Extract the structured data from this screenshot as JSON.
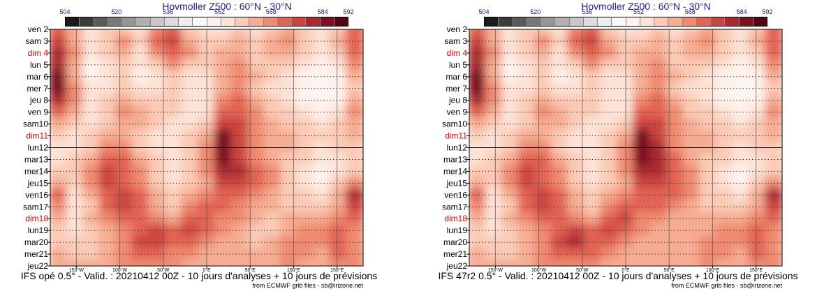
{
  "chart_data": [
    {
      "type": "heatmap",
      "title": "Hovmoller Z500 : 60°N - 30°N",
      "caption": "IFS opé 0.5° - Valid. : 20210412 00Z - 10 jours d'analyses + 10 jours de prévisions",
      "credit": "from ECMWF grib files - sb@irizone.net",
      "colorbar_ticks": [
        "504",
        "520",
        "536",
        "552",
        "568",
        "584",
        "592"
      ],
      "colorbar_range": [
        504,
        592
      ],
      "colorbar_colors": [
        "#1a1a1a",
        "#3c3c3c",
        "#5a5a5a",
        "#787878",
        "#969696",
        "#b0b0b0",
        "#c8c8c8",
        "#dcdcdc",
        "#eeeeee",
        "#f8f8f8",
        "#fff2ec",
        "#fde2d6",
        "#fbcab6",
        "#f6ac92",
        "#ef8a70",
        "#e26452",
        "#cc4440",
        "#a82a30",
        "#7a1020",
        "#5a0016"
      ],
      "y_labels": [
        "ven 2",
        "sam 3",
        "dim 4",
        "lun 5",
        "mar 6",
        "mer 7",
        "jeu 8",
        "ven 9",
        "sam10",
        "dim11",
        "lun12",
        "mar13",
        "mer14",
        "jeu15",
        "ven16",
        "sam17",
        "dim18",
        "lun19",
        "mar20",
        "mer21",
        "jeu22"
      ],
      "weekend_color": "#dd0000",
      "x_labels": [
        "150°W",
        "100°W",
        "50°W",
        "0°E",
        "50°E",
        "100°E",
        "150°E"
      ],
      "x_values": [
        -150,
        -100,
        -50,
        0,
        50,
        100,
        150
      ],
      "x_range": [
        -180,
        180
      ],
      "forecast_start": "lun12",
      "z_values": [
        [
          572,
          562,
          554,
          558,
          560,
          556,
          566,
          574,
          560,
          554,
          556,
          560,
          556,
          560,
          564,
          558,
          554,
          560,
          570
        ],
        [
          578,
          564,
          556,
          560,
          566,
          558,
          570,
          578,
          564,
          558,
          560,
          562,
          558,
          562,
          566,
          560,
          556,
          562,
          572
        ],
        [
          582,
          566,
          556,
          558,
          562,
          556,
          566,
          574,
          566,
          560,
          562,
          564,
          558,
          562,
          564,
          558,
          554,
          558,
          570
        ],
        [
          580,
          562,
          552,
          556,
          560,
          554,
          560,
          566,
          560,
          558,
          562,
          566,
          560,
          560,
          560,
          556,
          550,
          554,
          566
        ],
        [
          584,
          564,
          552,
          554,
          558,
          552,
          556,
          560,
          556,
          556,
          562,
          568,
          562,
          558,
          556,
          552,
          548,
          550,
          562
        ],
        [
          586,
          566,
          554,
          556,
          558,
          554,
          556,
          558,
          554,
          556,
          562,
          566,
          560,
          556,
          554,
          550,
          546,
          550,
          560
        ],
        [
          580,
          566,
          556,
          560,
          562,
          558,
          558,
          560,
          554,
          556,
          566,
          570,
          564,
          558,
          556,
          552,
          548,
          552,
          562
        ],
        [
          570,
          562,
          556,
          560,
          566,
          562,
          560,
          558,
          554,
          556,
          572,
          574,
          566,
          560,
          558,
          554,
          552,
          556,
          566
        ],
        [
          562,
          558,
          556,
          560,
          564,
          562,
          558,
          556,
          556,
          560,
          578,
          576,
          566,
          562,
          560,
          558,
          556,
          558,
          564
        ],
        [
          558,
          556,
          558,
          562,
          564,
          560,
          556,
          556,
          558,
          564,
          584,
          576,
          566,
          562,
          562,
          560,
          558,
          560,
          562
        ],
        [
          556,
          556,
          560,
          568,
          566,
          560,
          556,
          556,
          560,
          566,
          586,
          578,
          566,
          562,
          562,
          560,
          556,
          558,
          560
        ],
        [
          556,
          558,
          564,
          574,
          570,
          564,
          560,
          556,
          560,
          566,
          584,
          578,
          568,
          564,
          560,
          558,
          554,
          556,
          558
        ],
        [
          558,
          558,
          566,
          578,
          572,
          566,
          560,
          556,
          560,
          566,
          580,
          580,
          570,
          566,
          560,
          556,
          550,
          554,
          558
        ],
        [
          564,
          558,
          566,
          578,
          574,
          568,
          560,
          556,
          560,
          564,
          576,
          578,
          570,
          566,
          560,
          556,
          552,
          558,
          566
        ],
        [
          574,
          556,
          562,
          574,
          576,
          570,
          562,
          558,
          562,
          566,
          572,
          574,
          568,
          564,
          560,
          558,
          556,
          562,
          580
        ],
        [
          568,
          554,
          560,
          572,
          578,
          572,
          564,
          560,
          566,
          570,
          570,
          568,
          564,
          562,
          560,
          560,
          560,
          564,
          576
        ],
        [
          562,
          556,
          562,
          568,
          574,
          574,
          566,
          564,
          572,
          574,
          568,
          566,
          562,
          560,
          562,
          564,
          564,
          568,
          570
        ],
        [
          558,
          556,
          560,
          564,
          566,
          574,
          576,
          570,
          576,
          570,
          566,
          564,
          560,
          560,
          564,
          568,
          566,
          572,
          566
        ],
        [
          560,
          558,
          560,
          562,
          566,
          576,
          578,
          572,
          570,
          566,
          564,
          562,
          560,
          562,
          566,
          568,
          566,
          574,
          566
        ],
        [
          562,
          560,
          560,
          562,
          568,
          572,
          572,
          568,
          566,
          564,
          562,
          562,
          562,
          564,
          566,
          566,
          564,
          570,
          566
        ],
        [
          564,
          562,
          562,
          564,
          568,
          568,
          568,
          566,
          564,
          562,
          562,
          562,
          562,
          564,
          566,
          564,
          562,
          566,
          566
        ]
      ]
    },
    {
      "type": "heatmap",
      "title": "Hovmoller Z500 : 60°N - 30°N",
      "caption": "IFS 47r2 0.5° - Valid. : 20210412 00Z - 10 jours d'analyses + 10 jours de prévisions",
      "credit": "from ECMWF grib files - sb@irizone.net",
      "colorbar_ticks": [
        "504",
        "520",
        "536",
        "552",
        "568",
        "584",
        "592"
      ],
      "colorbar_range": [
        504,
        592
      ],
      "colorbar_colors": [
        "#1a1a1a",
        "#3c3c3c",
        "#5a5a5a",
        "#787878",
        "#969696",
        "#b0b0b0",
        "#c8c8c8",
        "#dcdcdc",
        "#eeeeee",
        "#f8f8f8",
        "#fff2ec",
        "#fde2d6",
        "#fbcab6",
        "#f6ac92",
        "#ef8a70",
        "#e26452",
        "#cc4440",
        "#a82a30",
        "#7a1020",
        "#5a0016"
      ],
      "y_labels": [
        "ven 2",
        "sam 3",
        "dim 4",
        "lun 5",
        "mar 6",
        "mer 7",
        "jeu 8",
        "ven 9",
        "sam10",
        "dim11",
        "lun12",
        "mar13",
        "mer14",
        "jeu15",
        "ven16",
        "sam17",
        "dim18",
        "lun19",
        "mar20",
        "mer21",
        "jeu22"
      ],
      "weekend_color": "#dd0000",
      "x_labels": [
        "150°W",
        "100°W",
        "50°W",
        "0°E",
        "50°E",
        "100°E",
        "150°E"
      ],
      "x_values": [
        -150,
        -100,
        -50,
        0,
        50,
        100,
        150
      ],
      "x_range": [
        -180,
        180
      ],
      "forecast_start": "lun12",
      "z_values": [
        [
          572,
          562,
          554,
          558,
          560,
          556,
          566,
          574,
          560,
          554,
          556,
          560,
          556,
          560,
          564,
          558,
          554,
          560,
          570
        ],
        [
          578,
          564,
          556,
          560,
          566,
          558,
          570,
          578,
          564,
          558,
          560,
          562,
          558,
          562,
          566,
          560,
          556,
          562,
          572
        ],
        [
          582,
          566,
          556,
          558,
          562,
          556,
          566,
          574,
          566,
          560,
          562,
          564,
          558,
          562,
          564,
          558,
          554,
          558,
          570
        ],
        [
          580,
          562,
          552,
          556,
          560,
          554,
          560,
          566,
          560,
          558,
          562,
          566,
          560,
          560,
          560,
          556,
          550,
          554,
          566
        ],
        [
          584,
          564,
          552,
          554,
          558,
          552,
          556,
          560,
          556,
          556,
          562,
          568,
          562,
          558,
          556,
          552,
          548,
          550,
          562
        ],
        [
          586,
          566,
          554,
          556,
          558,
          554,
          556,
          558,
          554,
          556,
          562,
          566,
          560,
          556,
          554,
          550,
          546,
          550,
          560
        ],
        [
          580,
          566,
          556,
          560,
          562,
          558,
          558,
          560,
          554,
          556,
          566,
          570,
          564,
          558,
          556,
          552,
          548,
          552,
          562
        ],
        [
          570,
          562,
          556,
          560,
          566,
          562,
          560,
          558,
          554,
          556,
          572,
          574,
          566,
          560,
          558,
          554,
          552,
          556,
          566
        ],
        [
          562,
          558,
          556,
          560,
          564,
          562,
          558,
          556,
          556,
          560,
          578,
          576,
          566,
          562,
          560,
          558,
          556,
          558,
          564
        ],
        [
          558,
          556,
          558,
          562,
          564,
          560,
          556,
          556,
          558,
          564,
          584,
          578,
          566,
          562,
          562,
          560,
          558,
          560,
          562
        ],
        [
          556,
          556,
          560,
          568,
          566,
          560,
          556,
          556,
          560,
          566,
          586,
          580,
          568,
          562,
          562,
          560,
          556,
          558,
          560
        ],
        [
          556,
          558,
          564,
          574,
          570,
          564,
          560,
          556,
          560,
          566,
          584,
          580,
          570,
          564,
          560,
          558,
          554,
          556,
          558
        ],
        [
          558,
          558,
          566,
          578,
          572,
          566,
          560,
          556,
          560,
          566,
          580,
          580,
          572,
          566,
          560,
          556,
          550,
          554,
          558
        ],
        [
          564,
          558,
          566,
          578,
          574,
          568,
          560,
          556,
          560,
          564,
          576,
          578,
          572,
          566,
          560,
          556,
          552,
          558,
          566
        ],
        [
          574,
          556,
          562,
          574,
          576,
          570,
          562,
          558,
          562,
          566,
          572,
          574,
          570,
          566,
          560,
          558,
          556,
          562,
          580
        ],
        [
          568,
          554,
          560,
          572,
          578,
          572,
          564,
          560,
          566,
          570,
          570,
          570,
          566,
          564,
          560,
          560,
          560,
          564,
          576
        ],
        [
          562,
          556,
          562,
          568,
          574,
          574,
          566,
          564,
          572,
          576,
          568,
          566,
          564,
          562,
          562,
          564,
          564,
          568,
          570
        ],
        [
          558,
          556,
          560,
          564,
          566,
          574,
          576,
          572,
          578,
          572,
          566,
          564,
          562,
          562,
          564,
          568,
          566,
          572,
          566
        ],
        [
          560,
          558,
          560,
          562,
          566,
          576,
          580,
          574,
          572,
          566,
          564,
          562,
          562,
          564,
          566,
          568,
          566,
          574,
          566
        ],
        [
          562,
          560,
          560,
          562,
          568,
          572,
          574,
          570,
          566,
          564,
          562,
          562,
          562,
          564,
          566,
          566,
          564,
          570,
          566
        ],
        [
          564,
          562,
          562,
          564,
          568,
          568,
          568,
          566,
          564,
          562,
          562,
          562,
          562,
          564,
          566,
          564,
          562,
          566,
          566
        ]
      ]
    }
  ]
}
